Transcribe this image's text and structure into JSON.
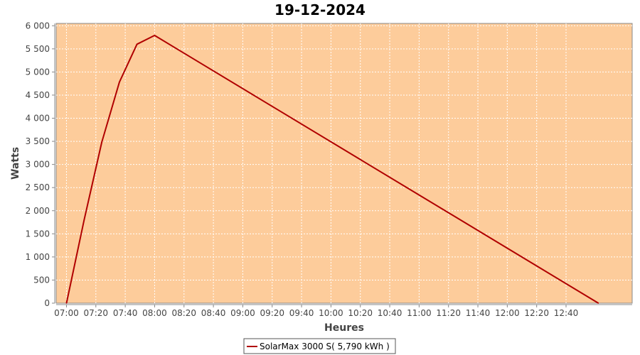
{
  "chart_data": {
    "type": "line",
    "title": "19-12-2024",
    "xlabel": "Heures",
    "ylabel": "Watts",
    "x_tick_labels": [
      "07:00",
      "07:20",
      "07:40",
      "08:00",
      "08:20",
      "08:40",
      "09:00",
      "09:20",
      "09:40",
      "10:00",
      "10:20",
      "10:40",
      "11:00",
      "11:20",
      "11:40",
      "12:00",
      "12:20",
      "12:40"
    ],
    "y_tick_labels": [
      "0",
      "500",
      "1 000",
      "1 500",
      "2 000",
      "2 500",
      "3 000",
      "3 500",
      "4 000",
      "4 500",
      "5 000",
      "5 500",
      "6 000"
    ],
    "x_range": [
      "06:53",
      "13:25"
    ],
    "ylim": [
      0,
      6050
    ],
    "grid": true,
    "legend_position": "bottom-center",
    "colors": {
      "plot_background": "#fdcc9b",
      "series_line": "#b00000",
      "grid": "#ffffff"
    },
    "series": [
      {
        "name": "SolarMax 3000 S( 5,790 kWh )",
        "x": [
          "07:00",
          "07:12",
          "07:24",
          "07:36",
          "07:48",
          "08:00",
          "13:02"
        ],
        "values": [
          0,
          1800,
          3480,
          4780,
          5600,
          5790,
          0
        ]
      }
    ]
  }
}
